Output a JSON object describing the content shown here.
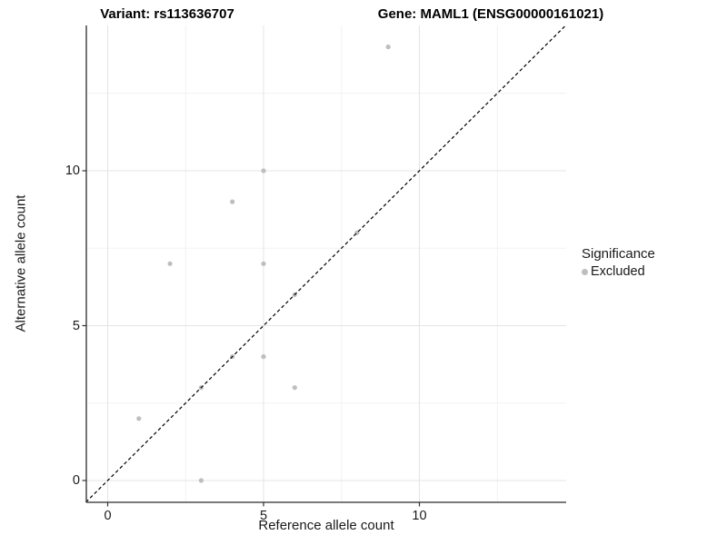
{
  "titles": {
    "left": "Variant: rs113636707",
    "right": "Gene: MAML1 (ENSG00000161021)"
  },
  "chart_data": {
    "type": "scatter",
    "xlabel": "Reference allele count",
    "ylabel": "Alternative allele count",
    "x_ticks": [
      0,
      5,
      10
    ],
    "y_ticks": [
      0,
      5,
      10
    ],
    "x_tick_labels": [
      "0",
      "5",
      "10"
    ],
    "y_tick_labels": [
      "0",
      "5",
      "10"
    ],
    "minor_ticks": [
      2.5,
      7.5,
      12.5
    ],
    "xlim": [
      -0.7,
      14.7
    ],
    "ylim": [
      -0.7,
      14.7
    ],
    "grid": true,
    "identity_line": {
      "slope": 1,
      "intercept": 0,
      "style": "dashed",
      "color": "#000000"
    },
    "series": [
      {
        "name": "Excluded",
        "color": "#bebebe",
        "points": [
          [
            1,
            2
          ],
          [
            2,
            7
          ],
          [
            3,
            0
          ],
          [
            3,
            3
          ],
          [
            4,
            4
          ],
          [
            4,
            9
          ],
          [
            5,
            4
          ],
          [
            5,
            7
          ],
          [
            5,
            10
          ],
          [
            6,
            3
          ],
          [
            6,
            6
          ],
          [
            8,
            8
          ],
          [
            9,
            14
          ]
        ]
      }
    ],
    "legend": {
      "title": "Significance",
      "position": "right",
      "items": [
        {
          "label": "Excluded",
          "color": "#bebebe"
        }
      ]
    }
  },
  "colors": {
    "background": "#ffffff",
    "grid_major": "#e4e4e4",
    "grid_minor": "#f2f2f2",
    "axis_line": "#2b2b2b",
    "tick_mark": "#333333",
    "point": "#bebebe",
    "text": "#1a1a1a"
  }
}
